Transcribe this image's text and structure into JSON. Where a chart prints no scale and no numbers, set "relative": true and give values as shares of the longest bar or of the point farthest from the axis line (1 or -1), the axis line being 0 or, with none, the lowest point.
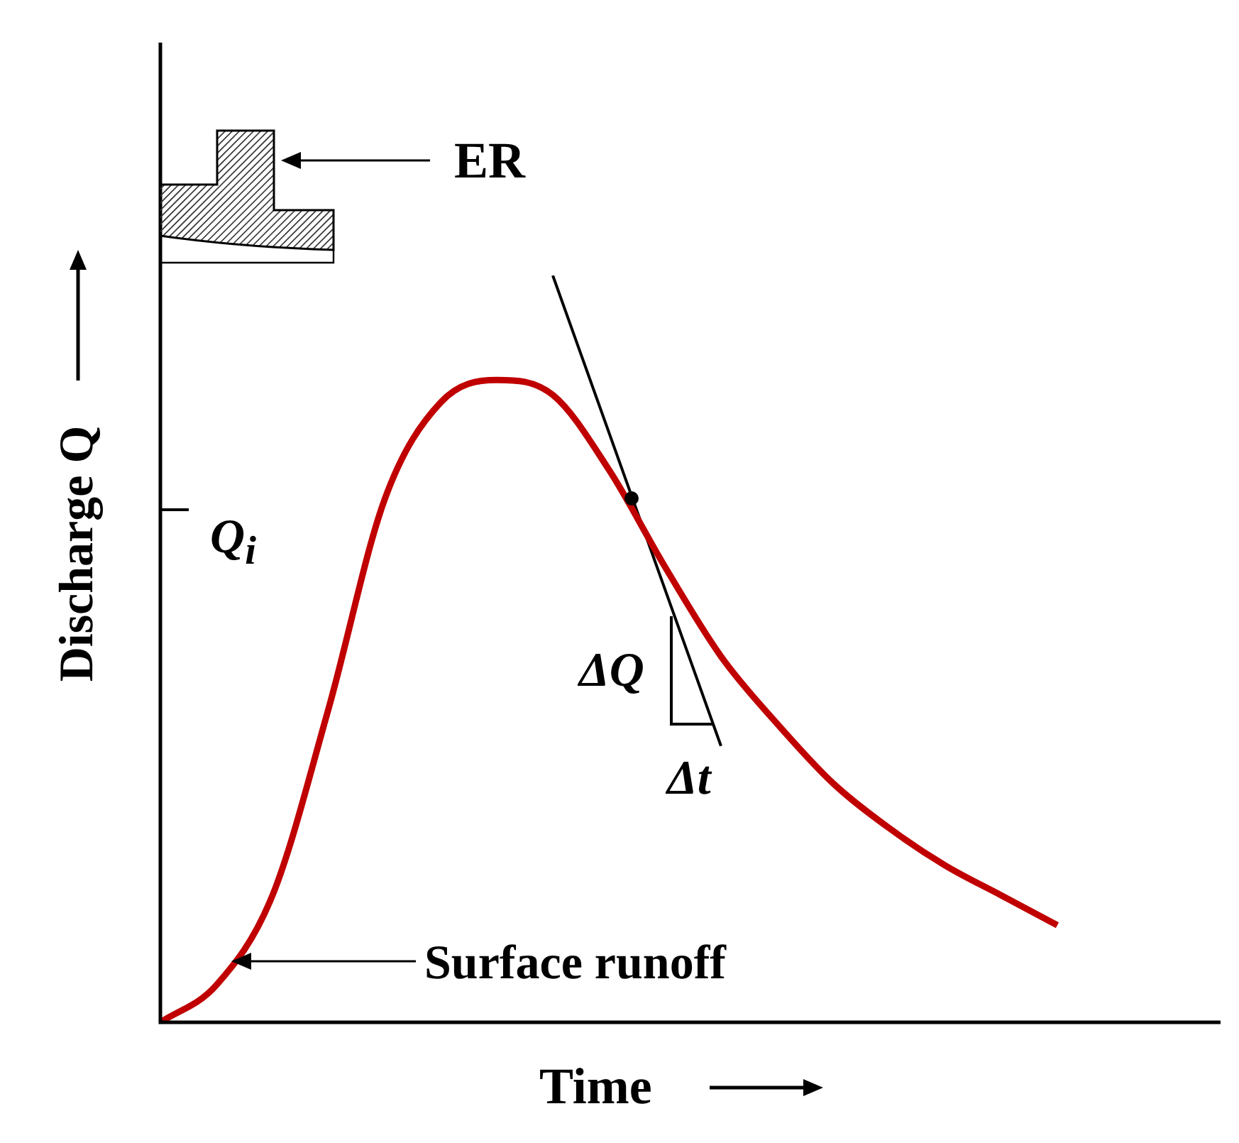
{
  "chart_data": {
    "type": "line",
    "relative": true,
    "xlabel": "Time",
    "ylabel": "Discharge Q",
    "legend": false,
    "marker": "none",
    "categories": [
      null,
      null,
      null,
      null,
      null,
      null,
      null,
      null,
      null,
      null,
      null,
      null,
      null,
      null,
      null,
      null,
      null
    ],
    "series": [
      {
        "color": "#c00000",
        "values": [
          0,
          0.05,
          0.17,
          0.42,
          0.7,
          0.83,
          0.86,
          0.84,
          0.74,
          0.61,
          0.49,
          0.4,
          0.32,
          0.26,
          0.21,
          0.17,
          0.13
        ]
      },
      {
        "color": "#000000",
        "values": [
          null,
          null,
          null,
          null,
          null,
          null,
          null,
          1,
          0.79,
          0.58,
          0.37,
          null,
          null,
          null,
          null,
          null,
          null
        ]
      }
    ],
    "annotations": [
      "ER",
      "Q$_{i}$",
      "ΔQ",
      "Δt",
      "Surface runoff"
    ]
  }
}
